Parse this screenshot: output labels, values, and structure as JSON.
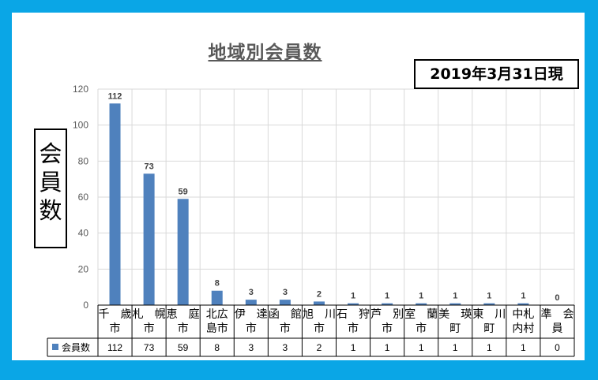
{
  "chart_data": {
    "type": "bar",
    "title": "地域別会員数",
    "ylabel": "会員数",
    "ylim": [
      0,
      120
    ],
    "yticks": [
      "0",
      "20",
      "40",
      "60",
      "80",
      "100",
      "120"
    ],
    "grid": true,
    "categories": [
      [
        "千　歳",
        "市"
      ],
      [
        "札　幌",
        "市"
      ],
      [
        "恵　庭",
        "市"
      ],
      [
        "北広",
        "島市"
      ],
      [
        "伊　達",
        "市"
      ],
      [
        "函　館",
        "市"
      ],
      [
        "旭　川",
        "市"
      ],
      [
        "石　狩",
        "市"
      ],
      [
        "芦　別",
        "市"
      ],
      [
        "室　蘭",
        "市"
      ],
      [
        "美　瑛",
        "町"
      ],
      [
        "東　川",
        "町"
      ],
      [
        "中札",
        "内村"
      ],
      [
        "準　会",
        "員"
      ]
    ],
    "series": [
      {
        "name": "会員数",
        "values": [
          112,
          73,
          59,
          8,
          3,
          3,
          2,
          1,
          1,
          1,
          1,
          1,
          1,
          0
        ],
        "color": "#4f81bd"
      }
    ],
    "data_labels": [
      "112",
      "73",
      "59",
      "8",
      "3",
      "3",
      "2",
      "1",
      "1",
      "1",
      "1",
      "1",
      "1",
      "0"
    ],
    "legend": "data-table"
  },
  "date_note": "2019年3月31日現"
}
